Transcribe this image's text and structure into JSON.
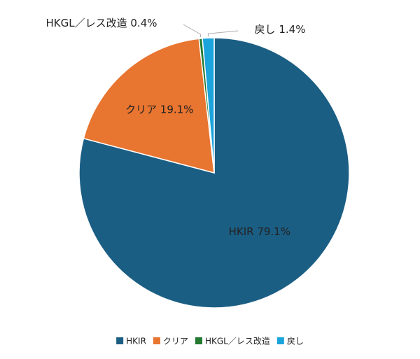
{
  "chart_data": {
    "type": "pie",
    "categories": [
      "HKIR",
      "クリア",
      "HKGL／レス改造",
      "戻し"
    ],
    "values": [
      79.1,
      19.1,
      0.4,
      1.4
    ],
    "value_labels": [
      "79.1%",
      "19.1%",
      "0.4%",
      "1.4%"
    ],
    "colors": [
      "#1b5e84",
      "#e87530",
      "#217a2f",
      "#1ba3dc"
    ],
    "legend": "bottom"
  }
}
